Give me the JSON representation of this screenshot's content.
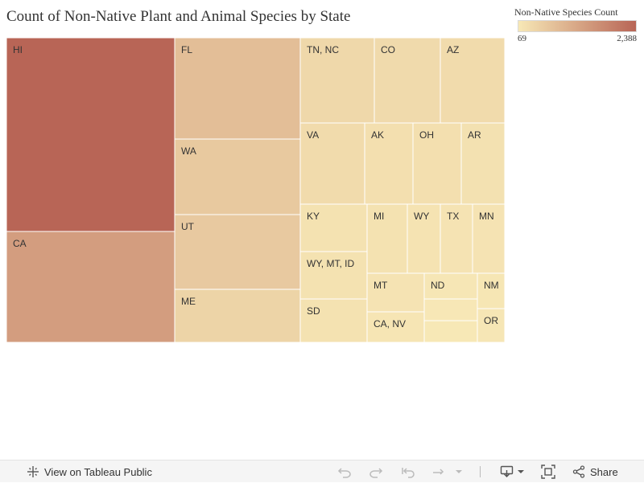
{
  "chart_data": {
    "type": "treemap",
    "title": "Count of Non-Native Plant and Animal Species by State",
    "legend": {
      "title": "Non-Native Species Count",
      "min_label": "69",
      "max_label": "2,388",
      "min": 69,
      "max": 2388,
      "color_low": "#f7e8b6",
      "color_high": "#b86556"
    },
    "cells": [
      {
        "label": "HI",
        "value": 2388
      },
      {
        "label": "CA",
        "value": 1400
      },
      {
        "label": "FL",
        "value": 820
      },
      {
        "label": "WA",
        "value": 620
      },
      {
        "label": "UT",
        "value": 610
      },
      {
        "label": "ME",
        "value": 420
      },
      {
        "label": "TN, NC",
        "value": 360
      },
      {
        "label": "CO",
        "value": 320
      },
      {
        "label": "AZ",
        "value": 300
      },
      {
        "label": "VA",
        "value": 300
      },
      {
        "label": "AK",
        "value": 230
      },
      {
        "label": "OH",
        "value": 230
      },
      {
        "label": "AR",
        "value": 200
      },
      {
        "label": "KY",
        "value": 180
      },
      {
        "label": "WY, MT, ID",
        "value": 180
      },
      {
        "label": "SD",
        "value": 180
      },
      {
        "label": "MI",
        "value": 180
      },
      {
        "label": "WY",
        "value": 160
      },
      {
        "label": "TX",
        "value": 150
      },
      {
        "label": "MN",
        "value": 150
      },
      {
        "label": "MT",
        "value": 150
      },
      {
        "label": "CA, NV",
        "value": 120
      },
      {
        "label": "ND",
        "value": 100
      },
      {
        "label": "",
        "value": 80
      },
      {
        "label": "",
        "value": 69
      },
      {
        "label": "NM",
        "value": 110
      },
      {
        "label": "OR",
        "value": 100
      }
    ]
  },
  "toolbar": {
    "view_label": "View on Tableau Public",
    "share_label": "Share"
  }
}
